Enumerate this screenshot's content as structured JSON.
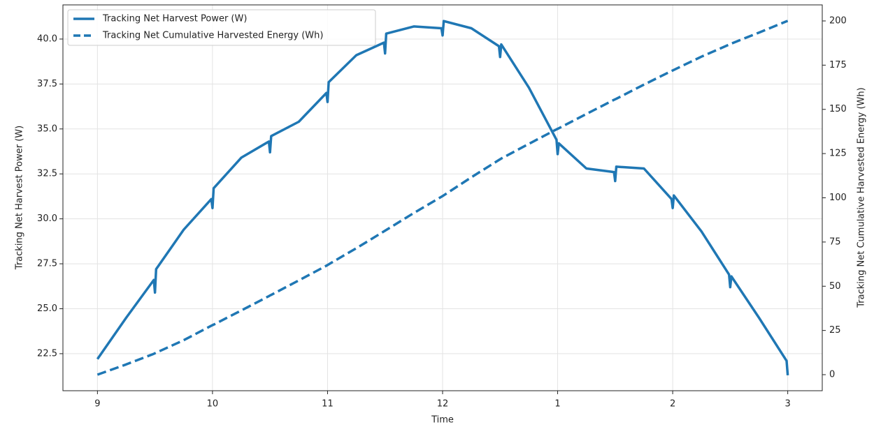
{
  "chart_data": {
    "type": "line",
    "x_label": "Time",
    "y_label": "Tracking Net Harvest Power (W)",
    "y2_label": "Tracking Net Cumulative Harvested Energy (Wh)",
    "x": [
      9,
      9.25,
      9.49,
      9.5,
      9.51,
      9.75,
      9.99,
      10,
      10.01,
      10.25,
      10.49,
      10.5,
      10.51,
      10.75,
      10.99,
      11,
      11.01,
      11.25,
      11.49,
      11.5,
      11.51,
      11.75,
      11.99,
      12,
      12.01,
      12.25,
      12.49,
      12.5,
      12.51,
      12.75,
      12.99,
      13,
      13.01,
      13.25,
      13.49,
      13.5,
      13.51,
      13.75,
      13.99,
      14,
      14.01,
      14.25,
      14.49,
      14.5,
      14.51,
      14.75,
      14.99,
      15
    ],
    "series": [
      {
        "name": "Tracking Net Harvest Power (W)",
        "color": "#1f77b4",
        "linestyle": "solid",
        "values": [
          22.2,
          24.5,
          26.6,
          25.9,
          27.2,
          29.4,
          31.1,
          30.6,
          31.7,
          33.4,
          34.3,
          33.7,
          34.6,
          35.4,
          37.0,
          36.5,
          37.6,
          39.1,
          39.8,
          39.2,
          40.3,
          40.7,
          40.6,
          40.2,
          41.0,
          40.6,
          39.6,
          39.0,
          39.7,
          37.3,
          34.4,
          33.6,
          34.2,
          32.8,
          32.6,
          32.1,
          32.9,
          32.8,
          31.1,
          30.6,
          31.3,
          29.3,
          26.9,
          26.2,
          26.8,
          24.5,
          22.1,
          21.3
        ]
      },
      {
        "name": "Tracking Net Cumulative Harvested Energy (Wh)",
        "color": "#1f77b4",
        "linestyle": "dashed",
        "axis": "y2",
        "values": [
          0,
          5.8,
          11.8,
          12.1,
          12.4,
          19.5,
          27.7,
          28,
          28.3,
          36.3,
          44.4,
          44.8,
          45.1,
          53.3,
          61.6,
          62,
          62.4,
          71.5,
          81,
          81.4,
          81.8,
          91.4,
          100.6,
          101,
          101.4,
          111.6,
          121.4,
          121.8,
          122.2,
          130.5,
          138.7,
          139,
          139.3,
          147.4,
          155.4,
          155.7,
          156,
          164,
          171.7,
          172,
          172.3,
          179.8,
          186.6,
          186.9,
          187.2,
          193.4,
          199.8,
          200
        ]
      }
    ],
    "xlim": [
      8.7,
      15.3
    ],
    "xticks": [
      9,
      10,
      11,
      12,
      {
        "value": 13,
        "label": "1"
      },
      {
        "value": 14,
        "label": "2"
      },
      {
        "value": 15,
        "label": "3"
      }
    ],
    "ylim": [
      20.44,
      41.9
    ],
    "yticks": [
      22.5,
      {
        "value": 25,
        "label": "25.0"
      },
      27.5,
      {
        "value": 30,
        "label": "30.0"
      },
      32.5,
      {
        "value": 35,
        "label": "35.0"
      },
      37.5,
      {
        "value": 40,
        "label": "40.0"
      }
    ],
    "y2lim": [
      -9.07,
      209.07
    ],
    "y2ticks": [
      0,
      25,
      50,
      75,
      100,
      125,
      150,
      175,
      200
    ],
    "grid": true,
    "legend": "upper-left"
  }
}
